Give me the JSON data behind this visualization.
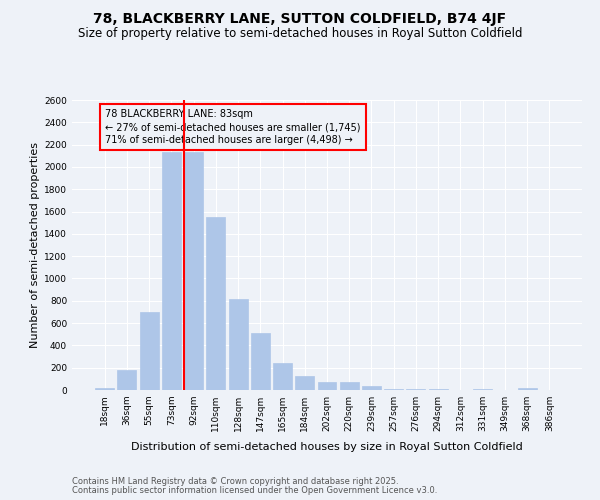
{
  "title": "78, BLACKBERRY LANE, SUTTON COLDFIELD, B74 4JF",
  "subtitle": "Size of property relative to semi-detached houses in Royal Sutton Coldfield",
  "xlabel": "Distribution of semi-detached houses by size in Royal Sutton Coldfield",
  "ylabel": "Number of semi-detached properties",
  "bin_labels": [
    "18sqm",
    "36sqm",
    "55sqm",
    "73sqm",
    "92sqm",
    "110sqm",
    "128sqm",
    "147sqm",
    "165sqm",
    "184sqm",
    "202sqm",
    "220sqm",
    "239sqm",
    "257sqm",
    "276sqm",
    "294sqm",
    "312sqm",
    "331sqm",
    "349sqm",
    "368sqm",
    "386sqm"
  ],
  "bar_values": [
    15,
    180,
    700,
    2130,
    2130,
    1550,
    820,
    515,
    245,
    130,
    70,
    70,
    35,
    10,
    5,
    5,
    0,
    5,
    0,
    15,
    0
  ],
  "bar_color": "#aec6e8",
  "bar_edgecolor": "#aec6e8",
  "vline_bin_idx": 4,
  "property_label": "78 BLACKBERRY LANE: 83sqm",
  "smaller_pct": 27,
  "smaller_count": 1745,
  "larger_pct": 71,
  "larger_count": 4498,
  "vline_color": "red",
  "annotation_box_edgecolor": "red",
  "ylim": [
    0,
    2600
  ],
  "yticks": [
    0,
    200,
    400,
    600,
    800,
    1000,
    1200,
    1400,
    1600,
    1800,
    2000,
    2200,
    2400,
    2600
  ],
  "footnote1": "Contains HM Land Registry data © Crown copyright and database right 2025.",
  "footnote2": "Contains public sector information licensed under the Open Government Licence v3.0.",
  "bg_color": "#eef2f8",
  "grid_color": "white",
  "title_fontsize": 10,
  "subtitle_fontsize": 8.5,
  "axis_label_fontsize": 8,
  "tick_fontsize": 6.5,
  "annotation_fontsize": 7,
  "footnote_fontsize": 6
}
